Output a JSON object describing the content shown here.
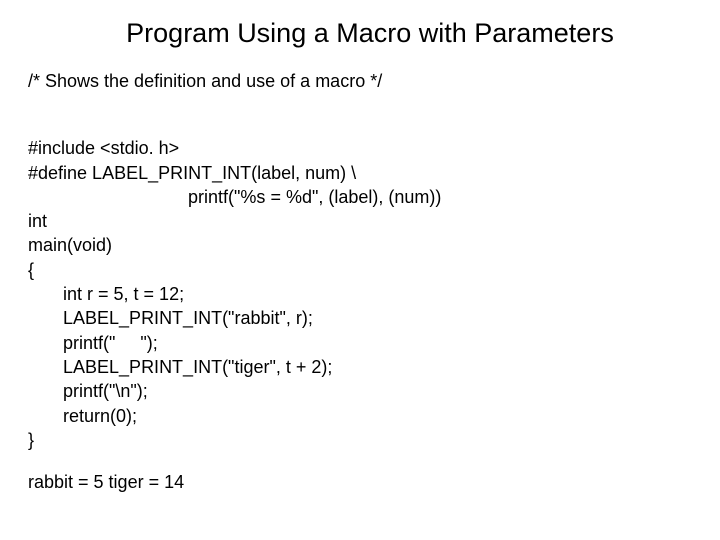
{
  "title": "Program Using a Macro with Parameters",
  "comment": "/*  Shows the definition and use of a macro               */",
  "lines": {
    "l1": "#include <stdio. h>",
    "l2": "#define LABEL_PRINT_INT(label, num) \\",
    "l3": "                                printf(\"%s = %d\", (label), (num))",
    "l4": "int",
    "l5": "main(void)",
    "l6": "{",
    "l7": "       int r = 5, t = 12;",
    "l8": "       LABEL_PRINT_INT(\"rabbit\", r);",
    "l9": "       printf(\"     \");",
    "l10": "       LABEL_PRINT_INT(\"tiger\", t + 2);",
    "l11": "       printf(\"\\n\");",
    "l12": "       return(0);",
    "l13": "}"
  },
  "output": "rabbit = 5      tiger = 14",
  "colors": {
    "background": "#ffffff",
    "text": "#000000"
  },
  "font": {
    "family": "Arial",
    "title_size": 27,
    "body_size": 18
  }
}
